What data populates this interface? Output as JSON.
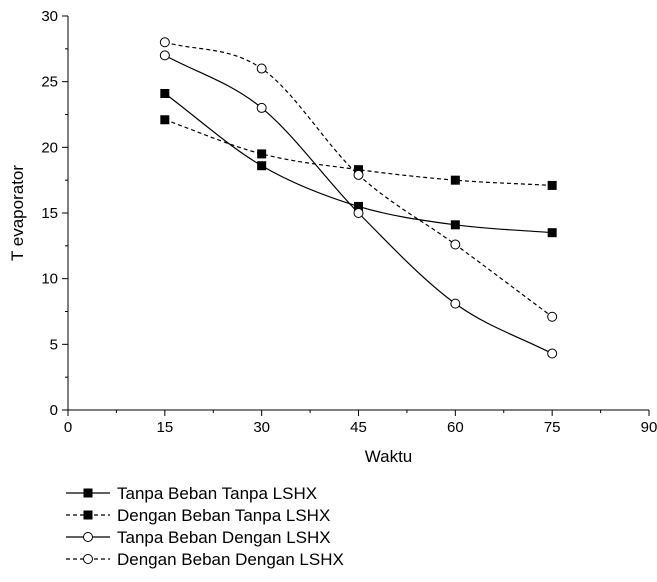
{
  "chart_data": {
    "type": "line",
    "xlabel": "Waktu",
    "ylabel": "T evaporator",
    "xlim": [
      0,
      90
    ],
    "ylim": [
      0,
      30
    ],
    "xticks": [
      0,
      15,
      30,
      45,
      60,
      75,
      90
    ],
    "yticks": [
      0,
      5,
      10,
      15,
      20,
      25,
      30
    ],
    "grid": false,
    "legend_position": "bottom-left",
    "x": [
      15,
      30,
      45,
      60,
      75
    ],
    "series": [
      {
        "name": "Tanpa Beban Tanpa LSHX",
        "values": [
          24.1,
          18.6,
          15.5,
          14.1,
          13.5
        ],
        "line_style": "solid",
        "marker": "filled-square"
      },
      {
        "name": "Dengan Beban Tanpa LSHX",
        "values": [
          22.1,
          19.5,
          18.3,
          17.5,
          17.1
        ],
        "line_style": "dashed",
        "marker": "filled-square"
      },
      {
        "name": "Tanpa Beban Dengan LSHX",
        "values": [
          27.0,
          23.0,
          15.0,
          8.1,
          4.3
        ],
        "line_style": "solid",
        "marker": "open-circle"
      },
      {
        "name": "Dengan Beban Dengan LSHX",
        "values": [
          28.0,
          26.0,
          17.9,
          12.6,
          7.1
        ],
        "line_style": "dashed",
        "marker": "open-circle"
      }
    ]
  }
}
